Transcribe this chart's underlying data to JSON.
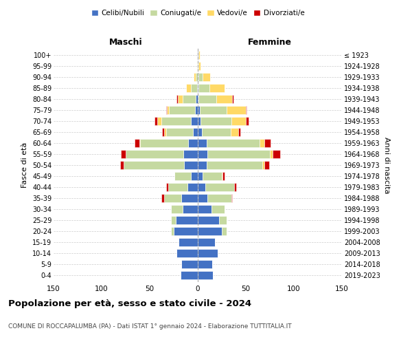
{
  "age_groups": [
    "100+",
    "95-99",
    "90-94",
    "85-89",
    "80-84",
    "75-79",
    "70-74",
    "65-69",
    "60-64",
    "55-59",
    "50-54",
    "45-49",
    "40-44",
    "35-39",
    "30-34",
    "25-29",
    "20-24",
    "15-19",
    "10-14",
    "5-9",
    "0-4"
  ],
  "birth_years": [
    "≤ 1923",
    "1924-1928",
    "1929-1933",
    "1934-1938",
    "1939-1943",
    "1944-1948",
    "1949-1953",
    "1954-1958",
    "1959-1963",
    "1964-1968",
    "1969-1973",
    "1974-1978",
    "1979-1983",
    "1984-1988",
    "1989-1993",
    "1994-1998",
    "1999-2003",
    "2004-2008",
    "2009-2013",
    "2014-2018",
    "2019-2023"
  ],
  "colors": {
    "celibe": "#4472C4",
    "coniugato": "#C5D9A0",
    "vedovo": "#FFD966",
    "divorziato": "#CC0000"
  },
  "maschi": {
    "celibe": [
      1,
      0,
      0,
      1,
      2,
      3,
      7,
      5,
      10,
      15,
      14,
      7,
      11,
      17,
      16,
      23,
      25,
      20,
      22,
      17,
      18
    ],
    "coniugato": [
      0,
      0,
      2,
      6,
      14,
      27,
      31,
      28,
      50,
      60,
      63,
      17,
      20,
      18,
      12,
      5,
      3,
      0,
      0,
      0,
      0
    ],
    "vedovo": [
      0,
      1,
      2,
      5,
      5,
      2,
      4,
      2,
      1,
      0,
      0,
      0,
      0,
      0,
      0,
      0,
      0,
      0,
      0,
      0,
      0
    ],
    "divorziato": [
      0,
      0,
      0,
      0,
      1,
      1,
      3,
      2,
      5,
      5,
      4,
      0,
      2,
      3,
      0,
      0,
      0,
      0,
      0,
      0,
      0
    ]
  },
  "femmine": {
    "nubile": [
      1,
      0,
      1,
      1,
      1,
      2,
      3,
      4,
      9,
      10,
      9,
      5,
      8,
      10,
      14,
      22,
      25,
      18,
      21,
      15,
      16
    ],
    "coniugata": [
      0,
      1,
      4,
      11,
      18,
      28,
      32,
      30,
      55,
      65,
      58,
      20,
      30,
      25,
      14,
      8,
      5,
      0,
      0,
      0,
      0
    ],
    "vedova": [
      1,
      2,
      8,
      16,
      17,
      20,
      15,
      8,
      5,
      3,
      2,
      1,
      0,
      0,
      0,
      0,
      0,
      0,
      0,
      0,
      0
    ],
    "divorziata": [
      0,
      0,
      0,
      0,
      1,
      1,
      3,
      2,
      7,
      8,
      5,
      2,
      2,
      1,
      0,
      0,
      0,
      0,
      0,
      0,
      0
    ]
  },
  "xlim": 150,
  "title": "Popolazione per età, sesso e stato civile - 2024",
  "subtitle": "COMUNE DI ROCCAPALUMBA (PA) - Dati ISTAT 1° gennaio 2024 - Elaborazione TUTTITALIA.IT",
  "ylabel_left": "Fasce di età",
  "ylabel_right": "Anni di nascita",
  "xlabel_maschi": "Maschi",
  "xlabel_femmine": "Femmine",
  "bg_color": "#ffffff",
  "grid_color": "#cccccc"
}
